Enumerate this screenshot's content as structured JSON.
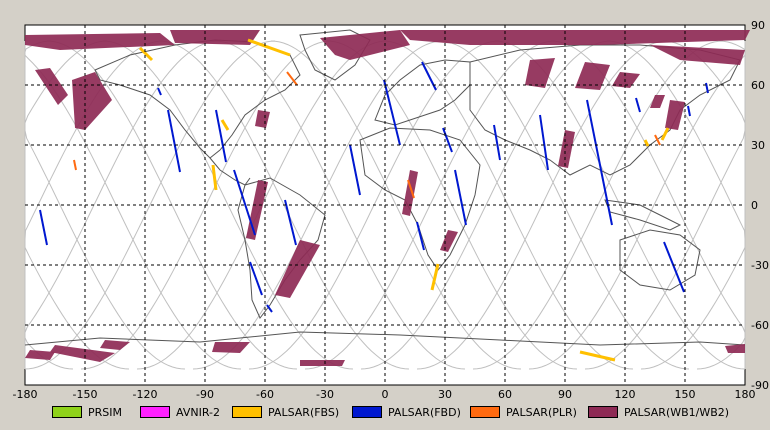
{
  "axes": {
    "x_ticks": [
      "-180",
      "-150",
      "-120",
      "-90",
      "-60",
      "-30",
      "0",
      "30",
      "60",
      "90",
      "120",
      "150",
      "180"
    ],
    "y_ticks": [
      "90",
      "60",
      "30",
      "0",
      "-30",
      "-60",
      "-90"
    ],
    "xlim": [
      -180,
      180
    ],
    "ylim": [
      -90,
      90
    ]
  },
  "legend": [
    {
      "label": "PRSIM",
      "color": "#8fd21a"
    },
    {
      "label": "AVNIR-2",
      "color": "#ff20ff"
    },
    {
      "label": "PALSAR(FBS)",
      "color": "#ffc000"
    },
    {
      "label": "PALSAR(FBD)",
      "color": "#0018d0"
    },
    {
      "label": "PALSAR(PLR)",
      "color": "#ff6a10"
    },
    {
      "label": "PALSAR(WB1/WB2)",
      "color": "#8e2a55"
    }
  ],
  "colors": {
    "fbs": "#ffc000",
    "fbd": "#0018d0",
    "plr": "#ff6a10",
    "wb": "#8e2a55"
  }
}
